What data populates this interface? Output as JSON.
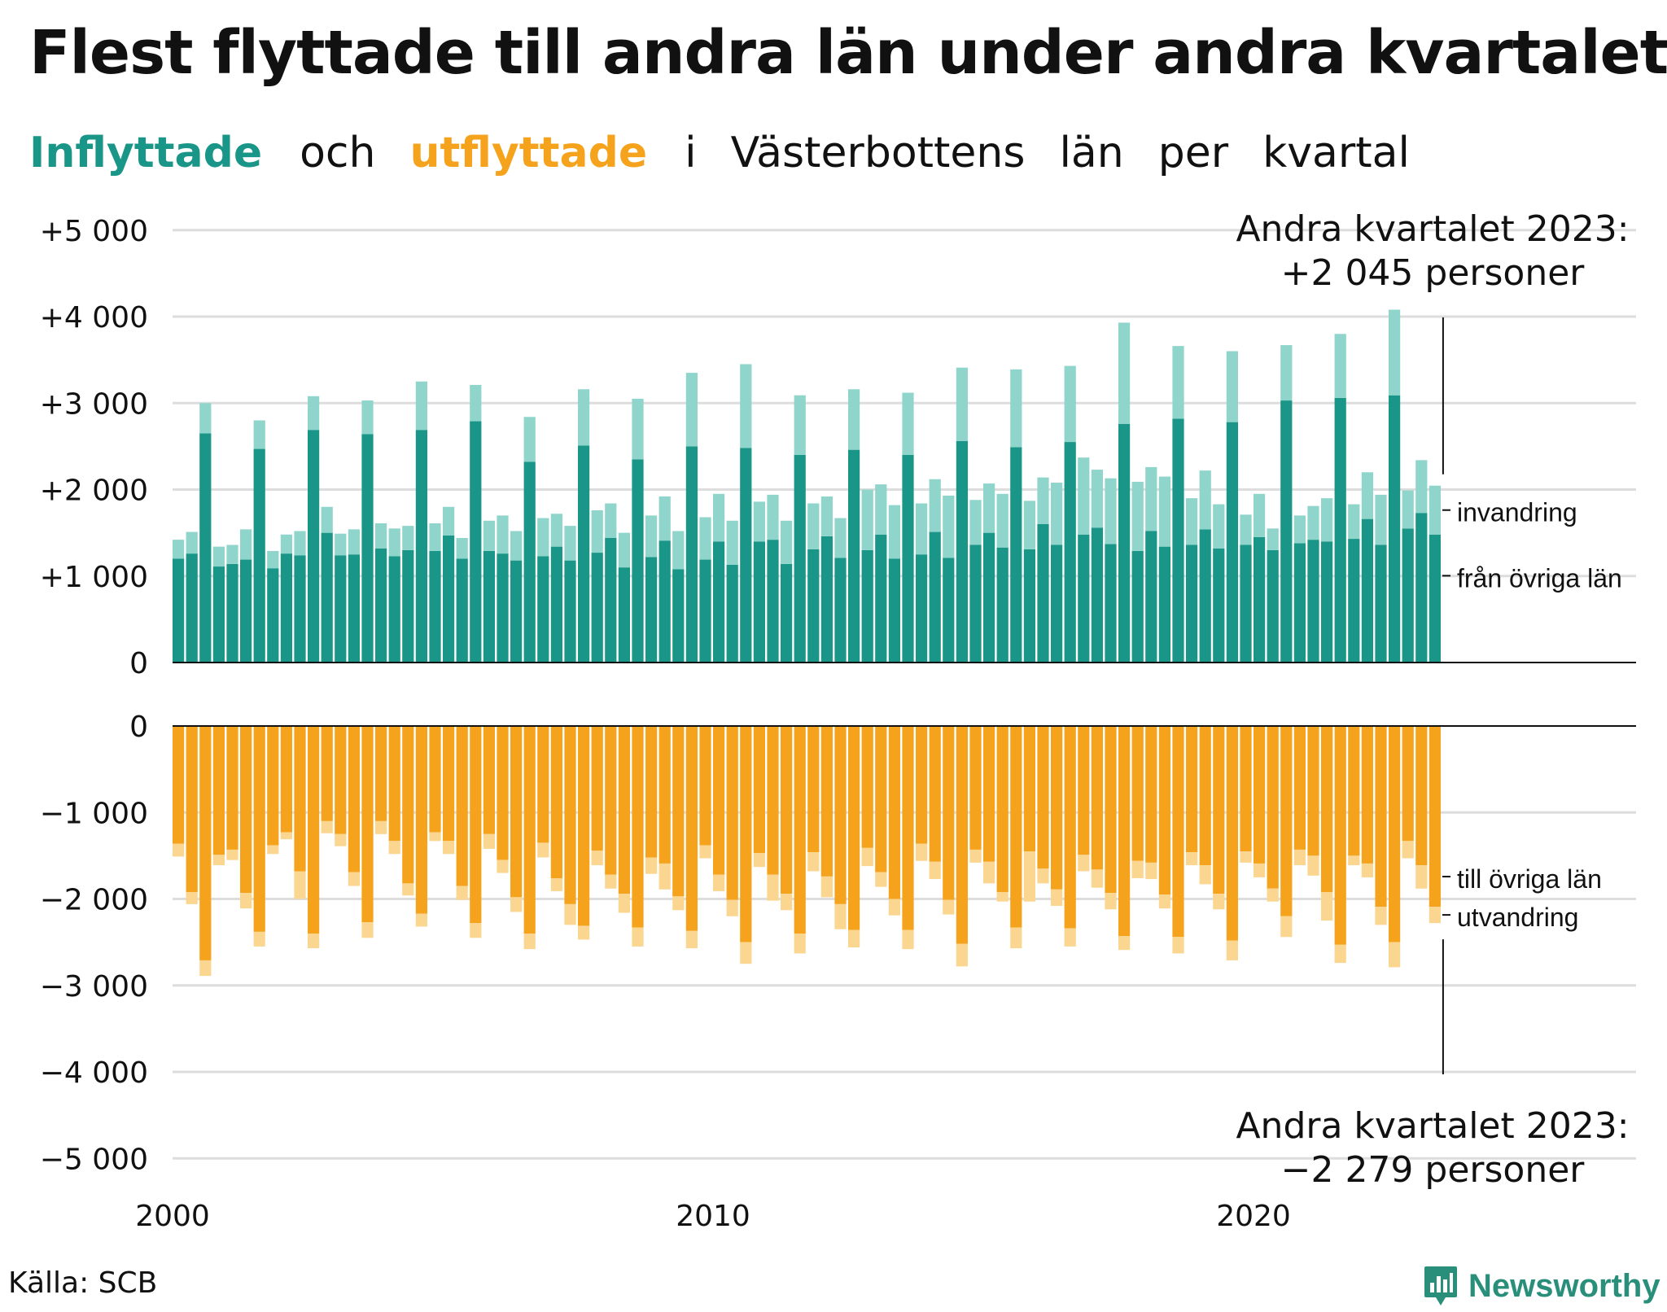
{
  "title": "Flest flyttade till andra län under andra kvartalet",
  "subtitle": {
    "inflyttade": "Inflyttade",
    "och": "och",
    "utflyttade": "utflyttade",
    "rest": [
      "i",
      "Västerbottens",
      "län",
      "per",
      "kvartal"
    ]
  },
  "source": "Källa: SCB",
  "brand": "Newsworthy",
  "colors": {
    "in_from_lan": "#1a9688",
    "in_invandring": "#8fd5cb",
    "out_to_lan": "#f5a31c",
    "out_utvandring": "#fbd690",
    "inflyttade_text": "#1a9688",
    "utflyttade_text": "#f5a31c",
    "grid": "#dddddd"
  },
  "chart_data": {
    "type": "bar",
    "stacked": true,
    "x_ticks": [
      "2000",
      "2010",
      "2020"
    ],
    "y_ticks": [
      "+5 000",
      "+4 000",
      "+3 000",
      "+2 000",
      "+1 000",
      "0",
      "0",
      "−1 000",
      "−2 000",
      "−3 000",
      "−4 000",
      "−5 000"
    ],
    "ylim_upper": [
      0,
      5000
    ],
    "ylim_lower": [
      -5000,
      0
    ],
    "first_quarter": "2000 Q1",
    "last_quarter": "2023 Q2",
    "grid": true,
    "series_labels": {
      "from_lan": "från övriga län",
      "invandring": "invandring",
      "to_lan": "till övriga län",
      "utvandring": "utvandring"
    },
    "annotation_top": [
      "Andra kvartalet 2023:",
      "+2 045 personer"
    ],
    "annotation_bottom": [
      "Andra kvartalet 2023:",
      "−2 279 personer"
    ],
    "series": [
      {
        "name": "från övriga län",
        "values": [
          1200,
          1260,
          2650,
          1110,
          1140,
          1190,
          2470,
          1090,
          1260,
          1240,
          2690,
          1500,
          1240,
          1250,
          2640,
          1320,
          1230,
          1300,
          2690,
          1290,
          1470,
          1200,
          2790,
          1290,
          1260,
          1180,
          2320,
          1230,
          1340,
          1180,
          2510,
          1270,
          1440,
          1100,
          2350,
          1220,
          1410,
          1080,
          2500,
          1190,
          1400,
          1130,
          2480,
          1400,
          1420,
          1140,
          2400,
          1310,
          1460,
          1210,
          2460,
          1300,
          1480,
          1200,
          2400,
          1250,
          1510,
          1210,
          2560,
          1360,
          1500,
          1330,
          2490,
          1310,
          1600,
          1360,
          2550,
          1480,
          1560,
          1370,
          2760,
          1290,
          1520,
          1340,
          2820,
          1360,
          1540,
          1320,
          2780,
          1360,
          1450,
          1300,
          3030,
          1380,
          1420,
          1400,
          3060,
          1430,
          1660,
          1360,
          3090,
          1550,
          1730,
          1480
        ]
      },
      {
        "name": "invandring",
        "values": [
          220,
          250,
          350,
          230,
          220,
          350,
          330,
          200,
          220,
          280,
          390,
          300,
          250,
          290,
          390,
          290,
          320,
          280,
          560,
          320,
          330,
          240,
          420,
          350,
          440,
          340,
          520,
          440,
          380,
          400,
          650,
          490,
          400,
          400,
          700,
          480,
          510,
          440,
          850,
          490,
          550,
          510,
          970,
          460,
          520,
          500,
          690,
          530,
          460,
          460,
          700,
          700,
          580,
          620,
          720,
          590,
          610,
          720,
          850,
          520,
          570,
          620,
          900,
          560,
          540,
          720,
          880,
          890,
          670,
          760,
          1170,
          800,
          740,
          810,
          840,
          540,
          680,
          510,
          820,
          350,
          500,
          250,
          640,
          320,
          390,
          500,
          740,
          400,
          540,
          580,
          990,
          440,
          610,
          565
        ]
      },
      {
        "name": "till övriga län",
        "values": [
          -1360,
          -1920,
          -2710,
          -1490,
          -1430,
          -1930,
          -2380,
          -1380,
          -1230,
          -1680,
          -2400,
          -1100,
          -1250,
          -1690,
          -2270,
          -1100,
          -1330,
          -1820,
          -2170,
          -1230,
          -1330,
          -1850,
          -2280,
          -1250,
          -1550,
          -1980,
          -2400,
          -1350,
          -1760,
          -2060,
          -2310,
          -1440,
          -1720,
          -1940,
          -2330,
          -1520,
          -1590,
          -1970,
          -2370,
          -1380,
          -1720,
          -2010,
          -2500,
          -1470,
          -1720,
          -1940,
          -2400,
          -1460,
          -1740,
          -2060,
          -2360,
          -1410,
          -1690,
          -2000,
          -2360,
          -1360,
          -1570,
          -2010,
          -2520,
          -1430,
          -1570,
          -1920,
          -2330,
          -1450,
          -1650,
          -1890,
          -2340,
          -1490,
          -1660,
          -1930,
          -2430,
          -1560,
          -1580,
          -1950,
          -2440,
          -1460,
          -1610,
          -1940,
          -2480,
          -1450,
          -1590,
          -1880,
          -2200,
          -1430,
          -1500,
          -1920,
          -2530,
          -1500,
          -1590,
          -2090,
          -2500,
          -1330,
          -1610,
          -2090
        ]
      },
      {
        "name": "utvandring",
        "values": [
          -150,
          -140,
          -180,
          -120,
          -120,
          -180,
          -170,
          -100,
          -80,
          -320,
          -170,
          -140,
          -140,
          -160,
          -180,
          -150,
          -150,
          -140,
          -150,
          -100,
          -150,
          -160,
          -170,
          -170,
          -150,
          -170,
          -180,
          -170,
          -150,
          -240,
          -160,
          -170,
          -160,
          -220,
          -220,
          -190,
          -300,
          -160,
          -200,
          -150,
          -190,
          -190,
          -250,
          -160,
          -300,
          -190,
          -230,
          -220,
          -240,
          -290,
          -200,
          -210,
          -170,
          -190,
          -220,
          -200,
          -200,
          -170,
          -260,
          -150,
          -250,
          -110,
          -240,
          -580,
          -170,
          -190,
          -210,
          -190,
          -210,
          -190,
          -160,
          -200,
          -190,
          -160,
          -190,
          -150,
          -220,
          -180,
          -230,
          -130,
          -160,
          -150,
          -240,
          -180,
          -230,
          -330,
          -210,
          -110,
          -160,
          -210,
          -290,
          -200,
          -270,
          -189
        ]
      }
    ]
  }
}
